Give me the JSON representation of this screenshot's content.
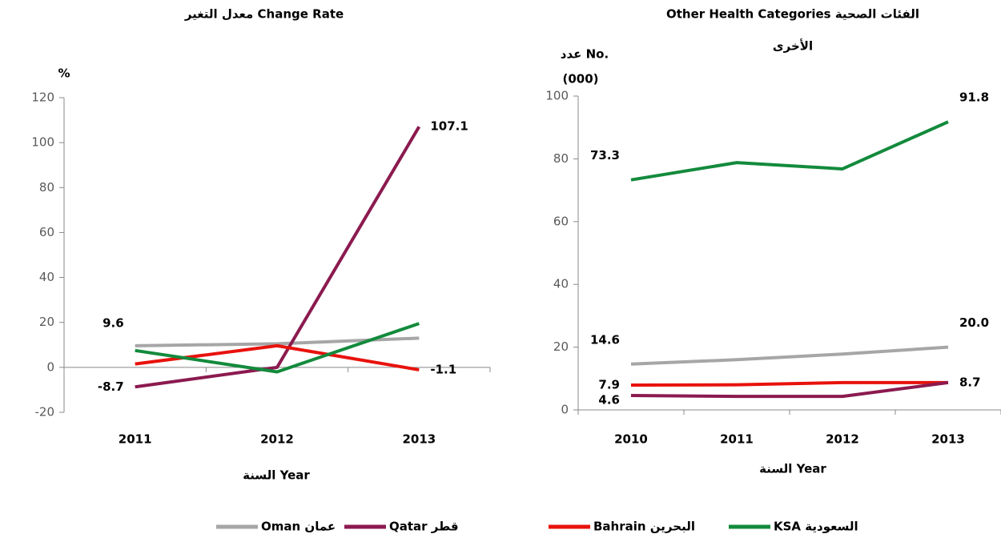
{
  "chart_data": [
    {
      "type": "line",
      "title": "معدل التغير Change Rate",
      "y_label": "%",
      "x_label": "السنة Year",
      "categories": [
        "2011",
        "2012",
        "2013"
      ],
      "ylim": [
        -20,
        120
      ],
      "yticks": [
        -20,
        0,
        20,
        40,
        60,
        80,
        100,
        120
      ],
      "series": [
        {
          "name": "Oman عمان",
          "color": "#a6a6a6",
          "values": [
            9.6,
            10.5,
            13
          ],
          "value_labels": [
            "9.6",
            null,
            null
          ]
        },
        {
          "name": "Qatar قطر",
          "color": "#8b1a4f",
          "values": [
            -8.7,
            0,
            107.1
          ],
          "value_labels": [
            "-8.7",
            null,
            "107.1"
          ]
        },
        {
          "color": "#e8120c",
          "values": [
            1.5,
            9.6,
            -1.1
          ],
          "value_labels": [
            null,
            null,
            "-1.1"
          ]
        },
        {
          "color": "#138a3c",
          "values": [
            7.5,
            -2,
            19.5
          ]
        }
      ]
    },
    {
      "type": "line",
      "title": "Other Health Categories الفئات الصحية",
      "title_line2": "الأخرى",
      "y_label": "عدد No.",
      "y_label_line2": "(000)",
      "x_label": "السنة Year",
      "categories": [
        "2010",
        "2011",
        "2012",
        "2013"
      ],
      "ylim": [
        0,
        100
      ],
      "yticks": [
        0,
        20,
        40,
        60,
        80,
        100
      ],
      "series": [
        {
          "name": "Bahrain البحرين",
          "color": "#e8120c",
          "values": [
            7.9,
            8,
            8.7,
            8.7
          ],
          "value_labels": [
            "7.9",
            null,
            null,
            "8.7"
          ]
        },
        {
          "name": "KSA السعودية",
          "color": "#138a3c",
          "values": [
            73.3,
            78.8,
            76.8,
            91.8
          ],
          "value_labels": [
            "73.3",
            null,
            null,
            "91.8"
          ]
        },
        {
          "color": "#a6a6a6",
          "values": [
            14.6,
            16,
            17.8,
            20.0
          ],
          "value_labels": [
            "14.6",
            null,
            null,
            "20.0"
          ]
        },
        {
          "color": "#8b1a4f",
          "values": [
            4.6,
            4.3,
            4.3,
            8.7
          ],
          "value_labels": [
            "4.6",
            null,
            null,
            null
          ]
        }
      ]
    }
  ]
}
